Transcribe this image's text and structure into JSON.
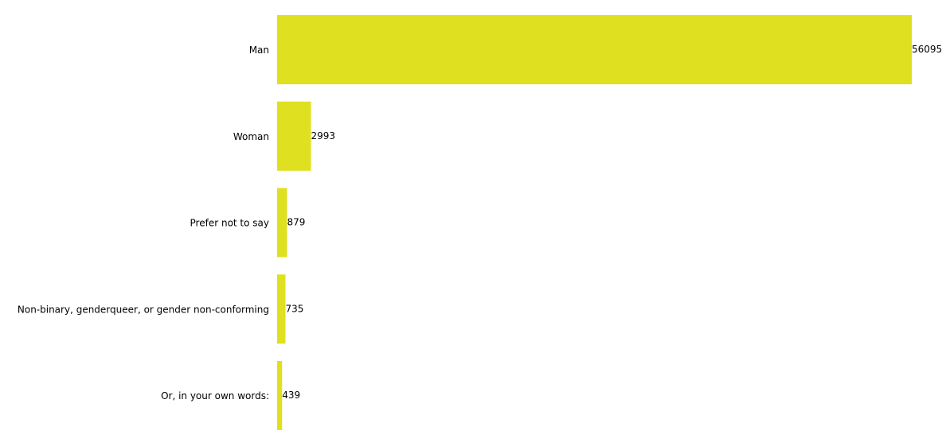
{
  "chart_data": {
    "type": "bar",
    "orientation": "horizontal",
    "categories": [
      "Man",
      "Woman",
      "Prefer not to say",
      "Non-binary, genderqueer, or gender non-conforming",
      "Or, in your own words:"
    ],
    "values": [
      56095,
      2993,
      879,
      735,
      439
    ],
    "data_labels": [
      "56095",
      "2993",
      "879",
      "735",
      "439"
    ],
    "title": "",
    "xlabel": "",
    "ylabel": "",
    "xlim": [
      0,
      56095
    ],
    "grid": false,
    "legend": "none",
    "bar_color": "#dfe01f",
    "text_color": "#000000"
  }
}
